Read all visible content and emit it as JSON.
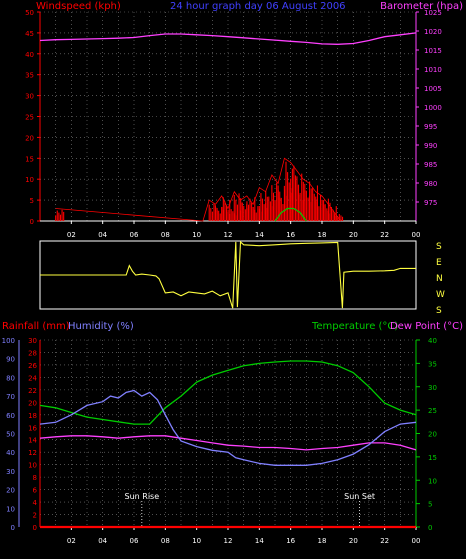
{
  "colors": {
    "wind": "#ff0000",
    "gust_green": "#00cc00",
    "pressure": "#ff40ff",
    "direction": "#ffff40",
    "rain": "#ff0000",
    "humidity": "#8080ff",
    "temperature": "#00cc00",
    "dewpoint": "#ff40ff",
    "grid": "#808080",
    "frame": "#ffffff",
    "title": "#4040ff"
  },
  "top_panel": {
    "title": "24 hour graph day  06 August 2006",
    "left_axis_label": "Windspeed (kph)",
    "right_axis_label": "Barometer (hpa)"
  },
  "direction_panel": {
    "labels": [
      "S",
      "E",
      "N",
      "W",
      "S"
    ]
  },
  "bottom_panel": {
    "rain_label": "Rainfall (mm)",
    "humidity_label": "Humidity (%)",
    "temperature_label": "Temperature (°C)",
    "dewpoint_label": "Dew Point (°C)",
    "sunrise_label": "Sun Rise",
    "sunset_label": "Sun Set"
  },
  "chart_data": [
    {
      "type": "line",
      "title": "24 hour graph day  06 August 2006",
      "x_ticks": [
        "02",
        "04",
        "06",
        "08",
        "10",
        "12",
        "14",
        "16",
        "18",
        "20",
        "22",
        "00"
      ],
      "y_left": {
        "label": "Windspeed (kph)",
        "range": [
          0,
          50
        ],
        "ticks": [
          "0",
          "5",
          "10",
          "15",
          "20",
          "25",
          "30",
          "35",
          "40",
          "45",
          "50"
        ]
      },
      "y_right": {
        "label": "Barometer (hpa)",
        "range": [
          970,
          1025
        ],
        "ticks": [
          "975",
          "980",
          "985",
          "990",
          "995",
          "1000",
          "1005",
          "1010",
          "1015",
          "1020",
          "1025"
        ]
      },
      "series": [
        {
          "name": "Barometer (hpa)",
          "axis": "right",
          "x": [
            0,
            1,
            2,
            3,
            4,
            5,
            6,
            7,
            8,
            9,
            10,
            11,
            12,
            13,
            14,
            15,
            16,
            17,
            18,
            19,
            20,
            21,
            22,
            23,
            24
          ],
          "y": [
            1017.5,
            1017.7,
            1017.8,
            1017.9,
            1018.0,
            1018.1,
            1018.3,
            1018.8,
            1019.2,
            1019.2,
            1019.0,
            1018.8,
            1018.5,
            1018.2,
            1017.9,
            1017.6,
            1017.3,
            1017.0,
            1016.6,
            1016.5,
            1016.7,
            1017.5,
            1018.5,
            1019.0,
            1019.5
          ]
        },
        {
          "name": "Windspeed (kph)",
          "axis": "left",
          "x": [
            1.0,
            10.4,
            10.8,
            11.2,
            11.6,
            12.0,
            12.4,
            12.8,
            13.2,
            13.6,
            14.0,
            14.4,
            14.8,
            15.2,
            15.6,
            16.0,
            16.4,
            16.8,
            17.2,
            17.6,
            18.0,
            18.4,
            18.8,
            19.2
          ],
          "y": [
            3,
            0,
            5,
            4,
            6,
            3,
            7,
            5,
            6,
            4,
            8,
            7,
            11,
            9,
            15,
            14,
            12,
            10,
            9,
            7,
            6,
            4,
            2,
            0
          ]
        },
        {
          "name": "Gust (kph)",
          "axis": "left",
          "x": [
            15.0,
            15.4,
            15.8,
            16.2,
            16.6,
            17.0
          ],
          "y": [
            0,
            2,
            3,
            3,
            2,
            0
          ]
        }
      ]
    },
    {
      "type": "line",
      "x_ticks": [],
      "y_labels": [
        "S",
        "E",
        "N",
        "W",
        "S"
      ],
      "y_range": [
        0,
        360
      ],
      "series": [
        {
          "name": "Wind direction",
          "x": [
            0,
            5.5,
            5.7,
            5.9,
            6.1,
            6.5,
            7.0,
            7.4,
            7.6,
            8.0,
            8.5,
            9.0,
            9.5,
            10.0,
            10.5,
            11.0,
            11.5,
            12.0,
            12.3,
            12.5,
            12.6,
            12.8,
            13.0,
            14.0,
            15.0,
            16.0,
            17.0,
            18.0,
            19.0,
            19.3,
            19.4,
            20.0,
            21.0,
            22.0,
            22.6,
            23.0,
            24.0
          ],
          "y": [
            180,
            180,
            230,
            200,
            180,
            185,
            180,
            175,
            160,
            85,
            90,
            70,
            90,
            85,
            80,
            95,
            70,
            85,
            5,
            355,
            10,
            355,
            340,
            335,
            340,
            345,
            348,
            350,
            352,
            5,
            195,
            200,
            200,
            202,
            205,
            215,
            215
          ]
        }
      ]
    },
    {
      "type": "line",
      "x_ticks": [
        "02",
        "04",
        "06",
        "08",
        "10",
        "12",
        "14",
        "16",
        "18",
        "20",
        "22",
        "00"
      ],
      "y_humidity": {
        "label": "Humidity (%)",
        "range": [
          0,
          100
        ],
        "ticks": [
          "0",
          "10",
          "20",
          "30",
          "40",
          "50",
          "60",
          "70",
          "80",
          "90",
          "100"
        ]
      },
      "y_rain": {
        "label": "Rainfall (mm)",
        "range": [
          0,
          30
        ],
        "ticks": [
          "0",
          "2",
          "4",
          "6",
          "8",
          "10",
          "12",
          "14",
          "16",
          "18",
          "20",
          "22",
          "24",
          "26",
          "28",
          "30"
        ]
      },
      "y_temp": {
        "label": "Temperature (°C)",
        "range": [
          0,
          40
        ],
        "ticks": [
          "0",
          "5",
          "10",
          "15",
          "20",
          "25",
          "30",
          "35",
          "40"
        ]
      },
      "annotations": [
        {
          "text": "Sun Rise",
          "x": 6.5
        },
        {
          "text": "Sun Set",
          "x": 20.4
        }
      ],
      "series": [
        {
          "name": "Humidity (%)",
          "axis": "humidity",
          "x": [
            0,
            1,
            2,
            3,
            4,
            4.5,
            5,
            5.5,
            6,
            6.5,
            7,
            7.5,
            8,
            8.5,
            9,
            10,
            11,
            12,
            12.5,
            13,
            14,
            15,
            16,
            17,
            18,
            19,
            20,
            21,
            22,
            23,
            24
          ],
          "y": [
            55,
            56,
            60,
            65,
            67,
            70,
            69,
            72,
            73,
            70,
            72,
            68,
            60,
            52,
            46,
            43,
            41,
            40,
            37,
            36,
            34,
            33,
            33,
            33,
            34,
            36,
            39,
            44,
            51,
            55,
            56
          ]
        },
        {
          "name": "Rainfall (mm)",
          "axis": "rain",
          "x": [
            0,
            24
          ],
          "y": [
            0,
            0
          ]
        },
        {
          "name": "Temperature (°C)",
          "axis": "temp",
          "x": [
            0,
            1,
            2,
            3,
            4,
            5,
            6,
            7,
            8,
            9,
            10,
            11,
            12,
            13,
            14,
            15,
            16,
            17,
            18,
            19,
            20,
            21,
            22,
            23,
            24
          ],
          "y": [
            26,
            25.5,
            24.5,
            23.5,
            23,
            22.5,
            22,
            22,
            25.5,
            28,
            31,
            32.5,
            33.5,
            34.5,
            35,
            35.3,
            35.5,
            35.5,
            35.3,
            34.5,
            33,
            30,
            26.5,
            25,
            24
          ]
        },
        {
          "name": "Dew Point (°C)",
          "axis": "temp",
          "x": [
            0,
            1,
            2,
            3,
            4,
            5,
            6,
            7,
            8,
            9,
            10,
            11,
            12,
            13,
            14,
            15,
            16,
            17,
            18,
            19,
            20,
            21,
            22,
            23,
            24
          ],
          "y": [
            19,
            19.3,
            19.5,
            19.5,
            19.3,
            19,
            19.3,
            19.5,
            19.5,
            19,
            18.5,
            18,
            17.5,
            17.3,
            17,
            17,
            16.8,
            16.5,
            16.8,
            17,
            17.5,
            18,
            18,
            17.5,
            16.5
          ]
        }
      ]
    }
  ]
}
